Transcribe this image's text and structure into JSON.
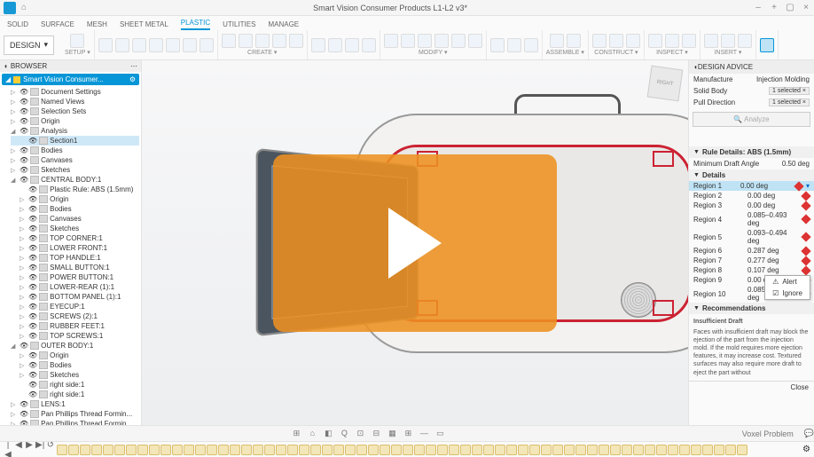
{
  "colors": {
    "accent": "#0696d7",
    "play": "#ed9121",
    "danger": "#c23",
    "flag": "#d33"
  },
  "title": "Smart Vision Consumer Products L1-L2 v3*",
  "window_buttons": [
    "–",
    "+",
    "▢",
    "×"
  ],
  "ribbon_tabs": [
    "SOLID",
    "SURFACE",
    "MESH",
    "SHEET METAL",
    "PLASTIC",
    "UTILITIES",
    "MANAGE"
  ],
  "ribbon_active": 4,
  "design_dropdown": "DESIGN",
  "toolbar_groups": [
    {
      "label": "SETUP",
      "count": 1
    },
    {
      "label": "",
      "count": 7
    },
    {
      "label": "CREATE",
      "count": 5
    },
    {
      "label": "",
      "count": 4
    },
    {
      "label": "MODIFY",
      "count": 6
    },
    {
      "label": "",
      "count": 3
    },
    {
      "label": "ASSEMBLE",
      "count": 2
    },
    {
      "label": "CONSTRUCT",
      "count": 3
    },
    {
      "label": "INSPECT",
      "count": 3
    },
    {
      "label": "INSERT",
      "count": 3
    },
    {
      "label": "",
      "count": 1
    }
  ],
  "browser": {
    "header": "BROWSER",
    "root": "Smart Vision Consumer...",
    "tree": [
      {
        "l": "Document Settings",
        "d": 0,
        "tw": "▷"
      },
      {
        "l": "Named Views",
        "d": 0,
        "tw": "▷"
      },
      {
        "l": "Selection Sets",
        "d": 0,
        "tw": "▷"
      },
      {
        "l": "Origin",
        "d": 0,
        "tw": "▷"
      },
      {
        "l": "Analysis",
        "d": 0,
        "tw": "◢"
      },
      {
        "l": "Section1",
        "d": 1,
        "sel": true
      },
      {
        "l": "Bodies",
        "d": 0,
        "tw": "▷"
      },
      {
        "l": "Canvases",
        "d": 0,
        "tw": "▷"
      },
      {
        "l": "Sketches",
        "d": 0,
        "tw": "▷"
      },
      {
        "l": "CENTRAL BODY:1",
        "d": 0,
        "tw": "◢"
      },
      {
        "l": "Plastic Rule: ABS (1.5mm)",
        "d": 1
      },
      {
        "l": "Origin",
        "d": 1,
        "tw": "▷"
      },
      {
        "l": "Bodies",
        "d": 1,
        "tw": "▷"
      },
      {
        "l": "Canvases",
        "d": 1,
        "tw": "▷"
      },
      {
        "l": "Sketches",
        "d": 1,
        "tw": "▷"
      },
      {
        "l": "TOP CORNER:1",
        "d": 1,
        "tw": "▷"
      },
      {
        "l": "LOWER FRONT:1",
        "d": 1,
        "tw": "▷"
      },
      {
        "l": "TOP HANDLE:1",
        "d": 1,
        "tw": "▷"
      },
      {
        "l": "SMALL BUTTON:1",
        "d": 1,
        "tw": "▷"
      },
      {
        "l": "POWER BUTTON:1",
        "d": 1,
        "tw": "▷"
      },
      {
        "l": "LOWER-REAR (1):1",
        "d": 1,
        "tw": "▷"
      },
      {
        "l": "BOTTOM PANEL (1):1",
        "d": 1,
        "tw": "▷"
      },
      {
        "l": "EYECUP:1",
        "d": 1,
        "tw": "▷"
      },
      {
        "l": "SCREWS (2):1",
        "d": 1,
        "tw": "▷"
      },
      {
        "l": "RUBBER FEET:1",
        "d": 1,
        "tw": "▷"
      },
      {
        "l": "TOP SCREWS:1",
        "d": 1,
        "tw": "▷"
      },
      {
        "l": "OUTER BODY:1",
        "d": 0,
        "tw": "◢"
      },
      {
        "l": "Origin",
        "d": 1,
        "tw": "▷"
      },
      {
        "l": "Bodies",
        "d": 1,
        "tw": "▷"
      },
      {
        "l": "Sketches",
        "d": 1,
        "tw": "▷"
      },
      {
        "l": "right side:1",
        "d": 1
      },
      {
        "l": "right side:1",
        "d": 1
      },
      {
        "l": "LENS:1",
        "d": 0,
        "tw": "▷"
      },
      {
        "l": "Pan Phillips Thread Formin...",
        "d": 0,
        "tw": "▷"
      },
      {
        "l": "Pan Phillips Thread Formin...",
        "d": 0,
        "tw": "▷"
      }
    ]
  },
  "viewcube": "RIGHT",
  "design_advice": {
    "header": "DESIGN ADVICE",
    "manufacture_label": "Manufacture",
    "manufacture_value": "Injection Molding",
    "solidbody_label": "Solid Body",
    "solidbody_value": "1 selected",
    "pulldir_label": "Pull Direction",
    "pulldir_value": "1 selected",
    "analyze": "Analyze",
    "rule_header": "Rule Details: ABS (1.5mm)",
    "min_draft_label": "Minimum Draft Angle",
    "min_draft_value": "0.50 deg",
    "details_header": "Details",
    "regions": [
      {
        "n": "Region 1",
        "v": "0.00 deg",
        "sel": true
      },
      {
        "n": "Region 2",
        "v": "0.00 deg"
      },
      {
        "n": "Region 3",
        "v": "0.00 deg"
      },
      {
        "n": "Region 4",
        "v": "0.085–0.493 deg"
      },
      {
        "n": "Region 5",
        "v": "0.093–0.494 deg"
      },
      {
        "n": "Region 6",
        "v": "0.287 deg"
      },
      {
        "n": "Region 7",
        "v": "0.277 deg"
      },
      {
        "n": "Region 8",
        "v": "0.107 deg"
      },
      {
        "n": "Region 9",
        "v": "0.00 deg"
      },
      {
        "n": "Region 10",
        "v": "0.085–0.493 deg"
      }
    ],
    "popup": [
      "Alert",
      "Ignore"
    ],
    "rec_header": "Recommendations",
    "rec_title": "Insufficient Draft",
    "rec_body": "Faces with insufficient draft may block the ejection of the part from the injection mold. If the mold requires more ejection features, it may increase cost. Textured surfaces may also require more draft to eject the part without",
    "close": "Close"
  },
  "navbar": {
    "right": "Voxel Problem",
    "icons": [
      "⊞",
      "⌂",
      "◧",
      "Q",
      "⊡",
      "⊟",
      "▦",
      "⊞",
      "—",
      "▭"
    ]
  },
  "timeline": {
    "controls": [
      "|◀",
      "◀",
      "▶",
      "▶|",
      "↺"
    ],
    "chip_count": 60
  }
}
